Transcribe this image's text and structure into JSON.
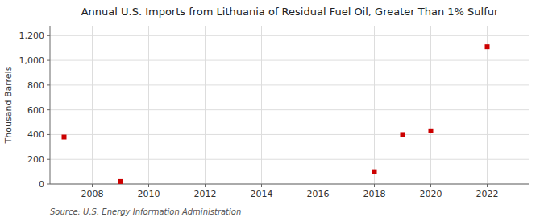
{
  "chart_data": {
    "type": "scatter",
    "title": "Annual U.S. Imports from Lithuania of Residual Fuel Oil, Greater Than 1% Sulfur",
    "ylabel": "Thousand Barrels",
    "source": "Source: U.S. Energy Information Administration",
    "x": [
      2007,
      2009,
      2018,
      2019,
      2020,
      2022
    ],
    "values": [
      380,
      20,
      100,
      400,
      430,
      1110
    ],
    "color": "#cc0000",
    "marker": "square",
    "grid": true,
    "xlim": [
      2006.5,
      2023.5
    ],
    "ylim": [
      0,
      1280
    ],
    "xticks": [
      2008,
      2010,
      2012,
      2014,
      2016,
      2018,
      2020,
      2022
    ],
    "yticks": [
      0,
      200,
      400,
      600,
      800,
      {
        "value": 1000,
        "label": "1,000"
      },
      {
        "value": 1200,
        "label": "1,200"
      }
    ]
  }
}
